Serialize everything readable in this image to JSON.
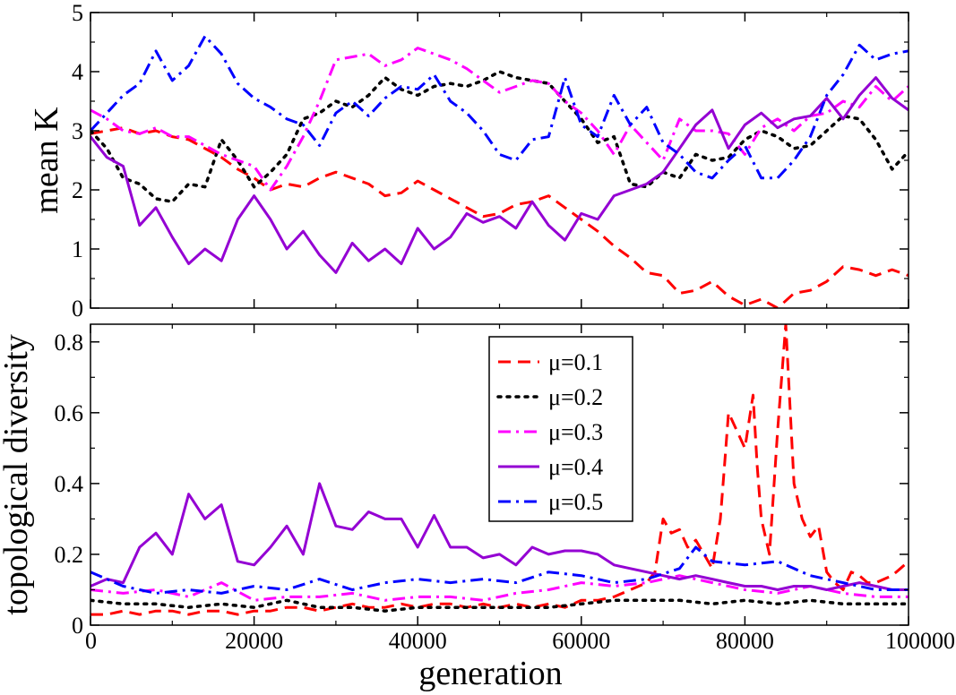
{
  "chart_data": [
    {
      "type": "line",
      "panel": "top",
      "title": "",
      "xlabel": "",
      "ylabel": "mean K",
      "xlim": [
        0,
        100000
      ],
      "ylim": [
        0,
        5
      ],
      "xticks": [
        0,
        20000,
        40000,
        60000,
        80000,
        100000
      ],
      "yticks": [
        0,
        1,
        2,
        3,
        4,
        5
      ],
      "ytick_labels": [
        "0",
        "1",
        "2",
        "3",
        "4",
        "5"
      ],
      "grid": false,
      "series": [
        {
          "name": "μ=0.1",
          "x": [
            0,
            2000,
            4000,
            6000,
            8000,
            10000,
            12000,
            14000,
            16000,
            18000,
            20000,
            22000,
            24000,
            26000,
            28000,
            30000,
            32000,
            34000,
            36000,
            38000,
            40000,
            42000,
            44000,
            46000,
            48000,
            50000,
            52000,
            54000,
            56000,
            58000,
            60000,
            62000,
            64000,
            66000,
            68000,
            70000,
            72000,
            74000,
            76000,
            78000,
            80000,
            82000,
            84000,
            86000,
            88000,
            90000,
            92000,
            94000,
            96000,
            98000,
            100000
          ],
          "values": [
            2.95,
            3.0,
            3.05,
            2.95,
            3.0,
            2.9,
            2.85,
            2.7,
            2.55,
            2.35,
            2.2,
            2.0,
            2.1,
            2.05,
            2.2,
            2.3,
            2.2,
            2.1,
            1.9,
            1.95,
            2.15,
            2.0,
            1.85,
            1.7,
            1.55,
            1.6,
            1.75,
            1.8,
            1.9,
            1.7,
            1.5,
            1.3,
            1.05,
            0.85,
            0.6,
            0.55,
            0.25,
            0.3,
            0.45,
            0.2,
            0.05,
            0.15,
            0.0,
            0.25,
            0.3,
            0.45,
            0.7,
            0.65,
            0.55,
            0.65,
            0.55
          ]
        },
        {
          "name": "μ=0.2",
          "x": [
            0,
            2000,
            4000,
            6000,
            8000,
            10000,
            12000,
            14000,
            16000,
            18000,
            20000,
            22000,
            24000,
            26000,
            28000,
            30000,
            32000,
            34000,
            36000,
            38000,
            40000,
            42000,
            44000,
            46000,
            48000,
            50000,
            52000,
            54000,
            56000,
            58000,
            60000,
            62000,
            64000,
            66000,
            68000,
            70000,
            72000,
            74000,
            76000,
            78000,
            80000,
            82000,
            84000,
            86000,
            88000,
            90000,
            92000,
            94000,
            96000,
            98000,
            100000
          ],
          "values": [
            3.0,
            2.7,
            2.2,
            2.1,
            1.85,
            1.8,
            2.1,
            2.05,
            2.85,
            2.5,
            2.05,
            2.3,
            2.6,
            3.2,
            3.3,
            3.5,
            3.4,
            3.6,
            3.9,
            3.7,
            3.6,
            3.75,
            3.8,
            3.75,
            3.85,
            4.0,
            3.9,
            3.85,
            3.8,
            3.5,
            3.2,
            2.8,
            2.9,
            2.1,
            2.05,
            2.3,
            2.2,
            2.6,
            2.5,
            2.55,
            2.85,
            3.0,
            2.9,
            2.7,
            2.75,
            3.0,
            3.25,
            3.2,
            2.85,
            2.35,
            2.65
          ]
        },
        {
          "name": "μ=0.3",
          "x": [
            0,
            2000,
            4000,
            6000,
            8000,
            10000,
            12000,
            14000,
            16000,
            18000,
            20000,
            22000,
            24000,
            26000,
            28000,
            30000,
            32000,
            34000,
            36000,
            38000,
            40000,
            42000,
            44000,
            46000,
            48000,
            50000,
            52000,
            54000,
            56000,
            58000,
            60000,
            62000,
            64000,
            66000,
            68000,
            70000,
            72000,
            74000,
            76000,
            78000,
            80000,
            82000,
            84000,
            86000,
            88000,
            90000,
            92000,
            94000,
            96000,
            98000,
            100000
          ],
          "values": [
            3.35,
            3.2,
            3.0,
            2.95,
            3.05,
            2.9,
            2.9,
            2.75,
            2.6,
            2.5,
            2.4,
            2.0,
            2.4,
            2.9,
            3.5,
            4.2,
            4.25,
            4.3,
            4.1,
            4.2,
            4.4,
            4.3,
            4.2,
            4.05,
            3.85,
            3.65,
            3.75,
            3.85,
            3.8,
            3.5,
            3.3,
            3.0,
            2.6,
            3.1,
            2.8,
            2.5,
            3.2,
            3.0,
            3.0,
            2.95,
            2.6,
            3.05,
            3.2,
            3.0,
            3.25,
            3.3,
            3.5,
            3.4,
            3.75,
            3.5,
            3.75
          ]
        },
        {
          "name": "μ=0.4",
          "x": [
            0,
            2000,
            4000,
            6000,
            8000,
            10000,
            12000,
            14000,
            16000,
            18000,
            20000,
            22000,
            24000,
            26000,
            28000,
            30000,
            32000,
            34000,
            36000,
            38000,
            40000,
            42000,
            44000,
            46000,
            48000,
            50000,
            52000,
            54000,
            56000,
            58000,
            60000,
            62000,
            64000,
            66000,
            68000,
            70000,
            72000,
            74000,
            76000,
            78000,
            80000,
            82000,
            84000,
            86000,
            88000,
            90000,
            92000,
            94000,
            96000,
            98000,
            100000
          ],
          "values": [
            2.9,
            2.55,
            2.4,
            1.4,
            1.7,
            1.2,
            0.75,
            1.0,
            0.8,
            1.5,
            1.9,
            1.5,
            1.0,
            1.3,
            0.9,
            0.6,
            1.1,
            0.8,
            1.0,
            0.75,
            1.35,
            1.0,
            1.2,
            1.6,
            1.45,
            1.55,
            1.35,
            1.8,
            1.4,
            1.15,
            1.6,
            1.5,
            1.9,
            2.0,
            2.1,
            2.3,
            2.7,
            3.1,
            3.35,
            2.7,
            3.1,
            3.3,
            3.05,
            3.2,
            3.25,
            3.55,
            3.2,
            3.6,
            3.9,
            3.55,
            3.35
          ]
        },
        {
          "name": "μ=0.5",
          "x": [
            0,
            2000,
            4000,
            6000,
            8000,
            10000,
            12000,
            14000,
            16000,
            18000,
            20000,
            22000,
            24000,
            26000,
            28000,
            30000,
            32000,
            34000,
            36000,
            38000,
            40000,
            42000,
            44000,
            46000,
            48000,
            50000,
            52000,
            54000,
            56000,
            58000,
            60000,
            62000,
            64000,
            66000,
            68000,
            70000,
            72000,
            74000,
            76000,
            78000,
            80000,
            82000,
            84000,
            86000,
            88000,
            90000,
            92000,
            94000,
            96000,
            98000,
            100000
          ],
          "values": [
            3.0,
            3.3,
            3.6,
            3.8,
            4.35,
            3.85,
            4.1,
            4.6,
            4.3,
            3.8,
            3.55,
            3.4,
            3.2,
            3.1,
            2.75,
            3.3,
            3.5,
            3.25,
            3.55,
            3.75,
            3.7,
            3.95,
            3.5,
            3.3,
            3.0,
            2.6,
            2.5,
            2.85,
            2.9,
            3.9,
            3.1,
            2.9,
            3.6,
            3.1,
            3.4,
            2.8,
            2.6,
            2.3,
            2.2,
            2.5,
            2.75,
            2.2,
            2.2,
            2.5,
            2.9,
            3.6,
            3.95,
            4.45,
            4.2,
            4.3,
            4.35
          ]
        }
      ]
    },
    {
      "type": "line",
      "panel": "bottom",
      "title": "",
      "xlabel": "generation",
      "ylabel": "topological diversity",
      "xlim": [
        0,
        100000
      ],
      "ylim": [
        0,
        0.85
      ],
      "xticks": [
        0,
        20000,
        40000,
        60000,
        80000,
        100000
      ],
      "xtick_labels": [
        "0",
        "20000",
        "40000",
        "60000",
        "80000",
        "100000"
      ],
      "yticks": [
        0,
        0.2,
        0.4,
        0.6,
        0.8
      ],
      "ytick_labels": [
        "0",
        "0.2",
        "0.4",
        "0.6",
        "0.8"
      ],
      "grid": false,
      "legend": [
        "μ=0.1",
        "μ=0.2",
        "μ=0.3",
        "μ=0.4",
        "μ=0.5"
      ],
      "legend_position": "top-center",
      "series": [
        {
          "name": "μ=0.1",
          "x": [
            0,
            2000,
            4000,
            6000,
            8000,
            10000,
            12000,
            14000,
            16000,
            18000,
            20000,
            22000,
            24000,
            26000,
            28000,
            30000,
            32000,
            34000,
            36000,
            38000,
            40000,
            42000,
            44000,
            46000,
            48000,
            50000,
            52000,
            54000,
            56000,
            58000,
            60000,
            62000,
            64000,
            66000,
            68000,
            69000,
            70000,
            71000,
            72000,
            73000,
            74000,
            75000,
            76000,
            77000,
            77500,
            78000,
            79000,
            80000,
            81000,
            81500,
            82000,
            83000,
            84000,
            85000,
            86000,
            87000,
            88000,
            89000,
            90000,
            91000,
            92000,
            93000,
            94000,
            95000,
            96000,
            97000,
            98000,
            99000,
            100000
          ],
          "values": [
            0.03,
            0.03,
            0.04,
            0.03,
            0.04,
            0.04,
            0.03,
            0.04,
            0.04,
            0.03,
            0.04,
            0.04,
            0.05,
            0.05,
            0.04,
            0.05,
            0.06,
            0.05,
            0.05,
            0.06,
            0.05,
            0.06,
            0.06,
            0.05,
            0.06,
            0.05,
            0.06,
            0.05,
            0.06,
            0.05,
            0.07,
            0.07,
            0.08,
            0.1,
            0.12,
            0.15,
            0.3,
            0.26,
            0.27,
            0.22,
            0.24,
            0.2,
            0.16,
            0.3,
            0.45,
            0.6,
            0.55,
            0.5,
            0.65,
            0.45,
            0.3,
            0.2,
            0.55,
            0.85,
            0.4,
            0.3,
            0.25,
            0.28,
            0.15,
            0.12,
            0.1,
            0.15,
            0.14,
            0.12,
            0.12,
            0.13,
            0.14,
            0.16,
            0.18
          ]
        },
        {
          "name": "μ=0.2",
          "x": [
            0,
            4000,
            8000,
            12000,
            16000,
            20000,
            24000,
            28000,
            32000,
            36000,
            40000,
            44000,
            48000,
            52000,
            56000,
            60000,
            64000,
            68000,
            72000,
            76000,
            80000,
            84000,
            88000,
            92000,
            96000,
            100000
          ],
          "values": [
            0.07,
            0.06,
            0.06,
            0.05,
            0.06,
            0.05,
            0.07,
            0.05,
            0.05,
            0.04,
            0.05,
            0.05,
            0.05,
            0.05,
            0.05,
            0.06,
            0.07,
            0.07,
            0.07,
            0.06,
            0.07,
            0.06,
            0.07,
            0.06,
            0.06,
            0.06
          ]
        },
        {
          "name": "μ=0.3",
          "x": [
            0,
            4000,
            8000,
            12000,
            16000,
            20000,
            24000,
            28000,
            32000,
            36000,
            40000,
            44000,
            48000,
            52000,
            56000,
            60000,
            64000,
            68000,
            72000,
            76000,
            80000,
            84000,
            88000,
            92000,
            96000,
            100000
          ],
          "values": [
            0.1,
            0.09,
            0.1,
            0.08,
            0.12,
            0.07,
            0.08,
            0.08,
            0.09,
            0.07,
            0.08,
            0.08,
            0.07,
            0.09,
            0.1,
            0.12,
            0.11,
            0.12,
            0.14,
            0.12,
            0.1,
            0.09,
            0.11,
            0.09,
            0.08,
            0.08
          ]
        },
        {
          "name": "μ=0.4",
          "x": [
            0,
            2000,
            4000,
            6000,
            8000,
            10000,
            12000,
            14000,
            16000,
            18000,
            20000,
            22000,
            24000,
            26000,
            28000,
            30000,
            32000,
            34000,
            36000,
            38000,
            40000,
            42000,
            44000,
            46000,
            48000,
            50000,
            52000,
            54000,
            56000,
            58000,
            60000,
            62000,
            64000,
            66000,
            68000,
            70000,
            72000,
            74000,
            76000,
            78000,
            80000,
            82000,
            84000,
            86000,
            88000,
            90000,
            92000,
            94000,
            96000,
            98000,
            100000
          ],
          "values": [
            0.11,
            0.13,
            0.12,
            0.22,
            0.26,
            0.2,
            0.37,
            0.3,
            0.34,
            0.18,
            0.17,
            0.22,
            0.28,
            0.2,
            0.4,
            0.28,
            0.27,
            0.32,
            0.3,
            0.3,
            0.22,
            0.31,
            0.22,
            0.22,
            0.19,
            0.2,
            0.17,
            0.22,
            0.2,
            0.21,
            0.21,
            0.2,
            0.17,
            0.16,
            0.15,
            0.14,
            0.13,
            0.14,
            0.13,
            0.12,
            0.11,
            0.11,
            0.1,
            0.11,
            0.11,
            0.1,
            0.11,
            0.12,
            0.11,
            0.1,
            0.1
          ]
        },
        {
          "name": "μ=0.5",
          "x": [
            0,
            4000,
            8000,
            12000,
            16000,
            20000,
            24000,
            28000,
            32000,
            36000,
            40000,
            44000,
            48000,
            52000,
            56000,
            60000,
            64000,
            68000,
            72000,
            74000,
            76000,
            80000,
            84000,
            88000,
            92000,
            96000,
            100000
          ],
          "values": [
            0.15,
            0.11,
            0.09,
            0.1,
            0.09,
            0.11,
            0.1,
            0.13,
            0.1,
            0.12,
            0.13,
            0.12,
            0.13,
            0.12,
            0.15,
            0.14,
            0.12,
            0.13,
            0.16,
            0.22,
            0.18,
            0.17,
            0.18,
            0.14,
            0.12,
            0.1,
            0.1
          ]
        }
      ]
    }
  ],
  "colors": {
    "mu01": "#ff0000",
    "mu02": "#000000",
    "mu03": "#ff00ff",
    "mu04": "#9400d3",
    "mu05": "#0000ff"
  }
}
